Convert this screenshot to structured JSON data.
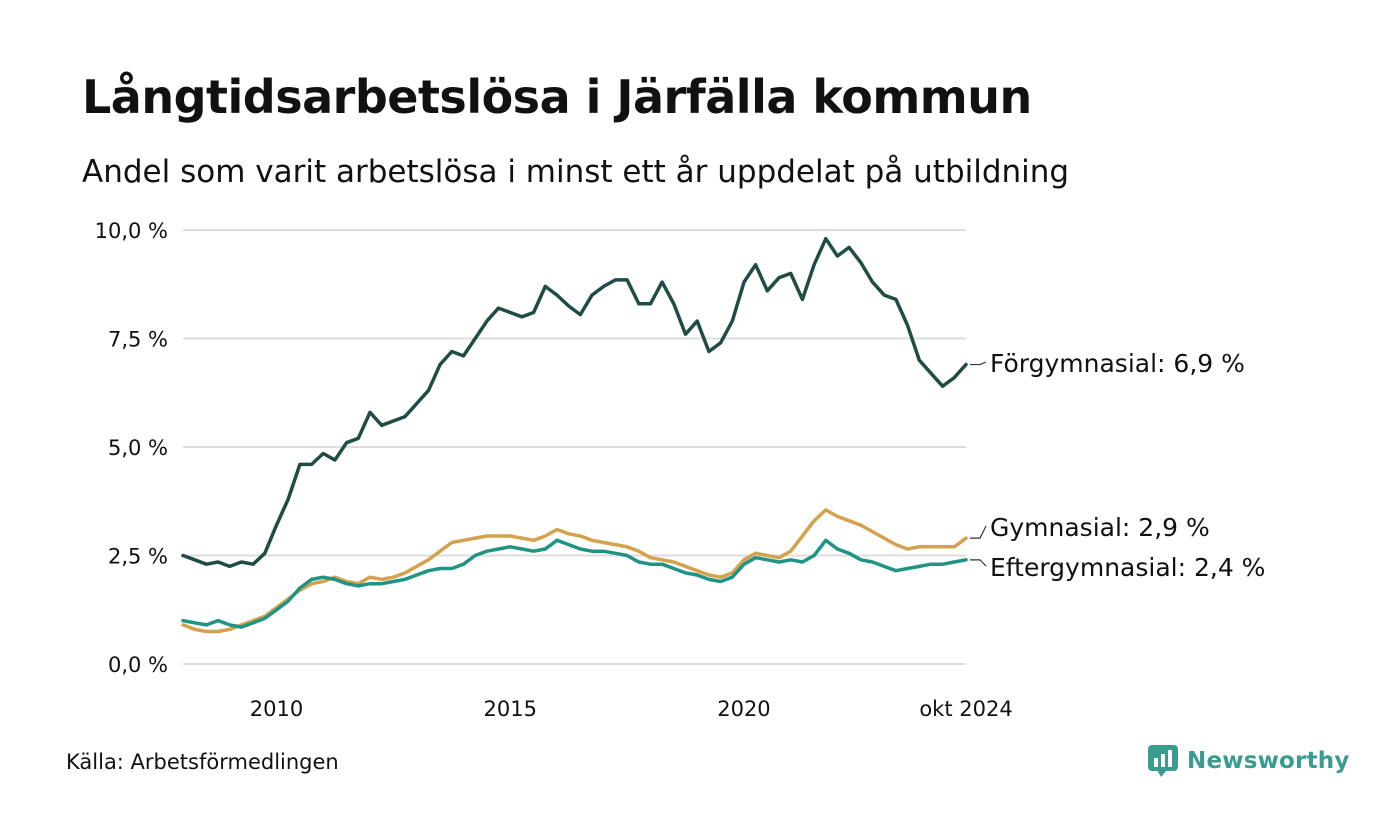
{
  "header": {
    "title": "Långtidsarbetslösa i Järfälla kommun",
    "subtitle": "Andel som varit arbetslösa i minst ett år uppdelat på utbildning"
  },
  "footer": {
    "source": "Källa: Arbetsförmedlingen",
    "brand": "Newsworthy",
    "brand_icon": "bar-chart-speech-icon"
  },
  "colors": {
    "forgymnasial": "#1f4d45",
    "gymnasial": "#d4a24c",
    "eftergymnasial": "#1f9484",
    "grid": "#dddddd",
    "brand": "#3a9b8f"
  },
  "chart_data": {
    "type": "line",
    "title": "Långtidsarbetslösa i Järfälla kommun",
    "subtitle": "Andel som varit arbetslösa i minst ett år uppdelat på utbildning",
    "xlabel": "",
    "ylabel": "",
    "x_range": [
      2008.0,
      2024.75
    ],
    "ylim": [
      0,
      10
    ],
    "y_ticks": [
      0,
      2.5,
      5,
      7.5,
      10
    ],
    "y_tick_labels": [
      "0,0 %",
      "2,5 %",
      "5,0 %",
      "7,5 %",
      "10,0 %"
    ],
    "x_ticks": [
      2010,
      2015,
      2020,
      2024.75
    ],
    "x_tick_labels": [
      "2010",
      "2015",
      "2020",
      "okt 2024"
    ],
    "grid": true,
    "series": [
      {
        "name": "Förgymnasial",
        "end_label": "Förgymnasial: 6,9 %",
        "color": "#1f4d45",
        "points": [
          [
            2008.0,
            2.5
          ],
          [
            2008.25,
            2.4
          ],
          [
            2008.5,
            2.3
          ],
          [
            2008.75,
            2.35
          ],
          [
            2009.0,
            2.25
          ],
          [
            2009.25,
            2.35
          ],
          [
            2009.5,
            2.3
          ],
          [
            2009.75,
            2.55
          ],
          [
            2010.0,
            3.2
          ],
          [
            2010.25,
            3.8
          ],
          [
            2010.5,
            4.6
          ],
          [
            2010.75,
            4.6
          ],
          [
            2011.0,
            4.85
          ],
          [
            2011.25,
            4.7
          ],
          [
            2011.5,
            5.1
          ],
          [
            2011.75,
            5.2
          ],
          [
            2012.0,
            5.8
          ],
          [
            2012.25,
            5.5
          ],
          [
            2012.5,
            5.6
          ],
          [
            2012.75,
            5.7
          ],
          [
            2013.0,
            6.0
          ],
          [
            2013.25,
            6.3
          ],
          [
            2013.5,
            6.9
          ],
          [
            2013.75,
            7.2
          ],
          [
            2014.0,
            7.1
          ],
          [
            2014.25,
            7.5
          ],
          [
            2014.5,
            7.9
          ],
          [
            2014.75,
            8.2
          ],
          [
            2015.0,
            8.1
          ],
          [
            2015.25,
            8.0
          ],
          [
            2015.5,
            8.1
          ],
          [
            2015.75,
            8.7
          ],
          [
            2016.0,
            8.5
          ],
          [
            2016.25,
            8.25
          ],
          [
            2016.5,
            8.05
          ],
          [
            2016.75,
            8.5
          ],
          [
            2017.0,
            8.7
          ],
          [
            2017.25,
            8.85
          ],
          [
            2017.5,
            8.85
          ],
          [
            2017.75,
            8.3
          ],
          [
            2018.0,
            8.3
          ],
          [
            2018.25,
            8.8
          ],
          [
            2018.5,
            8.3
          ],
          [
            2018.75,
            7.6
          ],
          [
            2019.0,
            7.9
          ],
          [
            2019.25,
            7.2
          ],
          [
            2019.5,
            7.4
          ],
          [
            2019.75,
            7.9
          ],
          [
            2020.0,
            8.8
          ],
          [
            2020.25,
            9.2
          ],
          [
            2020.5,
            8.6
          ],
          [
            2020.75,
            8.9
          ],
          [
            2021.0,
            9.0
          ],
          [
            2021.25,
            8.4
          ],
          [
            2021.5,
            9.2
          ],
          [
            2021.75,
            9.8
          ],
          [
            2022.0,
            9.4
          ],
          [
            2022.25,
            9.6
          ],
          [
            2022.5,
            9.25
          ],
          [
            2022.75,
            8.8
          ],
          [
            2023.0,
            8.5
          ],
          [
            2023.25,
            8.4
          ],
          [
            2023.5,
            7.8
          ],
          [
            2023.75,
            7.0
          ],
          [
            2024.0,
            6.7
          ],
          [
            2024.25,
            6.4
          ],
          [
            2024.5,
            6.6
          ],
          [
            2024.75,
            6.9
          ]
        ]
      },
      {
        "name": "Gymnasial",
        "end_label": "Gymnasial: 2,9 %",
        "color": "#d4a24c",
        "points": [
          [
            2008.0,
            0.9
          ],
          [
            2008.25,
            0.8
          ],
          [
            2008.5,
            0.75
          ],
          [
            2008.75,
            0.75
          ],
          [
            2009.0,
            0.8
          ],
          [
            2009.25,
            0.9
          ],
          [
            2009.5,
            1.0
          ],
          [
            2009.75,
            1.1
          ],
          [
            2010.0,
            1.3
          ],
          [
            2010.25,
            1.5
          ],
          [
            2010.5,
            1.7
          ],
          [
            2010.75,
            1.85
          ],
          [
            2011.0,
            1.9
          ],
          [
            2011.25,
            2.0
          ],
          [
            2011.5,
            1.9
          ],
          [
            2011.75,
            1.85
          ],
          [
            2012.0,
            2.0
          ],
          [
            2012.25,
            1.95
          ],
          [
            2012.5,
            2.0
          ],
          [
            2012.75,
            2.1
          ],
          [
            2013.0,
            2.25
          ],
          [
            2013.25,
            2.4
          ],
          [
            2013.5,
            2.6
          ],
          [
            2013.75,
            2.8
          ],
          [
            2014.0,
            2.85
          ],
          [
            2014.25,
            2.9
          ],
          [
            2014.5,
            2.95
          ],
          [
            2014.75,
            2.95
          ],
          [
            2015.0,
            2.95
          ],
          [
            2015.25,
            2.9
          ],
          [
            2015.5,
            2.85
          ],
          [
            2015.75,
            2.95
          ],
          [
            2016.0,
            3.1
          ],
          [
            2016.25,
            3.0
          ],
          [
            2016.5,
            2.95
          ],
          [
            2016.75,
            2.85
          ],
          [
            2017.0,
            2.8
          ],
          [
            2017.25,
            2.75
          ],
          [
            2017.5,
            2.7
          ],
          [
            2017.75,
            2.6
          ],
          [
            2018.0,
            2.45
          ],
          [
            2018.25,
            2.4
          ],
          [
            2018.5,
            2.35
          ],
          [
            2018.75,
            2.25
          ],
          [
            2019.0,
            2.15
          ],
          [
            2019.25,
            2.05
          ],
          [
            2019.5,
            2.0
          ],
          [
            2019.75,
            2.1
          ],
          [
            2020.0,
            2.4
          ],
          [
            2020.25,
            2.55
          ],
          [
            2020.5,
            2.5
          ],
          [
            2020.75,
            2.45
          ],
          [
            2021.0,
            2.6
          ],
          [
            2021.25,
            2.95
          ],
          [
            2021.5,
            3.3
          ],
          [
            2021.75,
            3.55
          ],
          [
            2022.0,
            3.4
          ],
          [
            2022.25,
            3.3
          ],
          [
            2022.5,
            3.2
          ],
          [
            2022.75,
            3.05
          ],
          [
            2023.0,
            2.9
          ],
          [
            2023.25,
            2.75
          ],
          [
            2023.5,
            2.65
          ],
          [
            2023.75,
            2.7
          ],
          [
            2024.0,
            2.7
          ],
          [
            2024.25,
            2.7
          ],
          [
            2024.5,
            2.7
          ],
          [
            2024.75,
            2.9
          ]
        ]
      },
      {
        "name": "Eftergymnasial",
        "end_label": "Eftergymnasial: 2,4 %",
        "color": "#1f9484",
        "points": [
          [
            2008.0,
            1.0
          ],
          [
            2008.25,
            0.95
          ],
          [
            2008.5,
            0.9
          ],
          [
            2008.75,
            1.0
          ],
          [
            2009.0,
            0.9
          ],
          [
            2009.25,
            0.85
          ],
          [
            2009.5,
            0.95
          ],
          [
            2009.75,
            1.05
          ],
          [
            2010.0,
            1.25
          ],
          [
            2010.25,
            1.45
          ],
          [
            2010.5,
            1.75
          ],
          [
            2010.75,
            1.95
          ],
          [
            2011.0,
            2.0
          ],
          [
            2011.25,
            1.95
          ],
          [
            2011.5,
            1.85
          ],
          [
            2011.75,
            1.8
          ],
          [
            2012.0,
            1.85
          ],
          [
            2012.25,
            1.85
          ],
          [
            2012.5,
            1.9
          ],
          [
            2012.75,
            1.95
          ],
          [
            2013.0,
            2.05
          ],
          [
            2013.25,
            2.15
          ],
          [
            2013.5,
            2.2
          ],
          [
            2013.75,
            2.2
          ],
          [
            2014.0,
            2.3
          ],
          [
            2014.25,
            2.5
          ],
          [
            2014.5,
            2.6
          ],
          [
            2014.75,
            2.65
          ],
          [
            2015.0,
            2.7
          ],
          [
            2015.25,
            2.65
          ],
          [
            2015.5,
            2.6
          ],
          [
            2015.75,
            2.65
          ],
          [
            2016.0,
            2.85
          ],
          [
            2016.25,
            2.75
          ],
          [
            2016.5,
            2.65
          ],
          [
            2016.75,
            2.6
          ],
          [
            2017.0,
            2.6
          ],
          [
            2017.25,
            2.55
          ],
          [
            2017.5,
            2.5
          ],
          [
            2017.75,
            2.35
          ],
          [
            2018.0,
            2.3
          ],
          [
            2018.25,
            2.3
          ],
          [
            2018.5,
            2.2
          ],
          [
            2018.75,
            2.1
          ],
          [
            2019.0,
            2.05
          ],
          [
            2019.25,
            1.95
          ],
          [
            2019.5,
            1.9
          ],
          [
            2019.75,
            2.0
          ],
          [
            2020.0,
            2.3
          ],
          [
            2020.25,
            2.45
          ],
          [
            2020.5,
            2.4
          ],
          [
            2020.75,
            2.35
          ],
          [
            2021.0,
            2.4
          ],
          [
            2021.25,
            2.35
          ],
          [
            2021.5,
            2.5
          ],
          [
            2021.75,
            2.85
          ],
          [
            2022.0,
            2.65
          ],
          [
            2022.25,
            2.55
          ],
          [
            2022.5,
            2.4
          ],
          [
            2022.75,
            2.35
          ],
          [
            2023.0,
            2.25
          ],
          [
            2023.25,
            2.15
          ],
          [
            2023.5,
            2.2
          ],
          [
            2023.75,
            2.25
          ],
          [
            2024.0,
            2.3
          ],
          [
            2024.25,
            2.3
          ],
          [
            2024.5,
            2.35
          ],
          [
            2024.75,
            2.4
          ]
        ]
      }
    ]
  }
}
